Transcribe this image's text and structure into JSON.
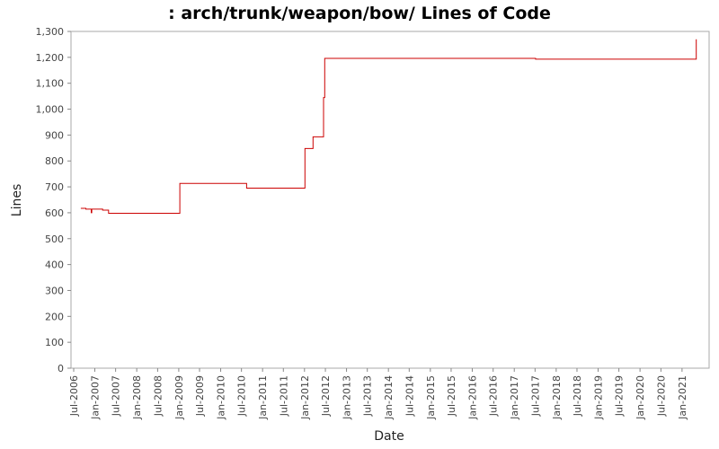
{
  "chart_data": {
    "type": "line",
    "title": ": arch/trunk/weapon/bow/ Lines of Code",
    "xlabel": "Date",
    "ylabel": "Lines",
    "ylim": [
      0,
      1300
    ],
    "yticks": [
      0,
      100,
      200,
      300,
      400,
      500,
      600,
      700,
      800,
      900,
      1000,
      1100,
      1200,
      1300
    ],
    "ytick_labels": [
      "0",
      "100",
      "200",
      "300",
      "400",
      "500",
      "600",
      "700",
      "800",
      "900",
      "1,000",
      "1,100",
      "1,200",
      "1,300"
    ],
    "xlim": [
      "2006-07-01",
      "2021-07-01"
    ],
    "xticks": [
      "2006-07-01",
      "2007-01-01",
      "2007-07-01",
      "2008-01-01",
      "2008-07-01",
      "2009-01-01",
      "2009-07-01",
      "2010-01-01",
      "2010-07-01",
      "2011-01-01",
      "2011-07-01",
      "2012-01-01",
      "2012-07-01",
      "2013-01-01",
      "2013-07-01",
      "2014-01-01",
      "2014-07-01",
      "2015-01-01",
      "2015-07-01",
      "2016-01-01",
      "2016-07-01",
      "2017-01-01",
      "2017-07-01",
      "2018-01-01",
      "2018-07-01",
      "2019-01-01",
      "2019-07-01",
      "2020-01-01",
      "2020-07-01",
      "2021-01-01"
    ],
    "xtick_labels": [
      "Jul-2006",
      "Jan-2007",
      "Jul-2007",
      "Jan-2008",
      "Jul-2008",
      "Jan-2009",
      "Jul-2009",
      "Jan-2010",
      "Jul-2010",
      "Jan-2011",
      "Jul-2011",
      "Jan-2012",
      "Jul-2012",
      "Jan-2013",
      "Jul-2013",
      "Jan-2014",
      "Jul-2014",
      "Jan-2015",
      "Jul-2015",
      "Jan-2016",
      "Jul-2016",
      "Jan-2017",
      "Jul-2017",
      "Jan-2018",
      "Jul-2018",
      "Jan-2019",
      "Jul-2019",
      "Jan-2020",
      "Jul-2020",
      "Jan-2021"
    ],
    "grid": false,
    "legend": "none",
    "line_color": "#cc0000",
    "step": true,
    "series": [
      {
        "x": [
          "2006-09-01",
          "2006-10-15",
          "2006-12-01",
          "2006-12-05",
          "2007-03-10",
          "2007-05-01",
          "2009-01-10",
          "2010-08-15",
          "2012-01-05",
          "2012-03-15",
          "2012-06-15",
          "2012-06-25",
          "2017-07-05",
          "2021-05-01",
          "2021-05-05"
        ],
        "y": [
          617,
          614,
          600,
          614,
          610,
          598,
          713,
          695,
          848,
          893,
          1045,
          1196,
          1193,
          1193,
          1270
        ]
      }
    ]
  }
}
